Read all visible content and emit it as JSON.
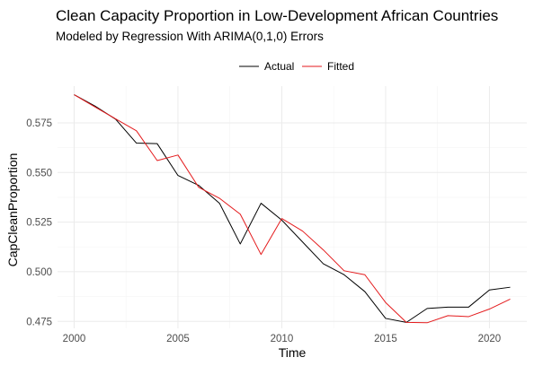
{
  "chart_data": {
    "type": "line",
    "title": "Clean Capacity Proportion in Low-Development African Countries",
    "subtitle": "Modeled by Regression With ARIMA(0,1,0) Errors",
    "xlabel": "Time",
    "ylabel": "CapCleanProportion",
    "x": [
      2000,
      2001,
      2002,
      2003,
      2004,
      2005,
      2006,
      2007,
      2008,
      2009,
      2010,
      2011,
      2012,
      2013,
      2014,
      2015,
      2016,
      2017,
      2018,
      2019,
      2020,
      2021
    ],
    "series": [
      {
        "name": "Actual",
        "color": "#000000",
        "values": [
          0.5892,
          0.5835,
          0.5768,
          0.5648,
          0.5645,
          0.5485,
          0.5435,
          0.5345,
          0.514,
          0.5345,
          0.526,
          0.515,
          0.504,
          0.4985,
          0.49,
          0.4765,
          0.4745,
          0.4815,
          0.4822,
          0.4822,
          0.4908,
          0.4922
        ]
      },
      {
        "name": "Fitted",
        "color": "#e41a1c",
        "values": [
          0.5892,
          0.583,
          0.577,
          0.571,
          0.556,
          0.5588,
          0.5425,
          0.537,
          0.529,
          0.5087,
          0.5268,
          0.5205,
          0.511,
          0.5005,
          0.4985,
          0.4845,
          0.4745,
          0.4743,
          0.4779,
          0.4774,
          0.4812,
          0.4862
        ]
      }
    ],
    "xticks": [
      2000,
      2005,
      2010,
      2015,
      2020
    ],
    "yticks": [
      0.475,
      0.5,
      0.525,
      0.55,
      0.575
    ],
    "ytick_labels": [
      "0.475",
      "0.500",
      "0.525",
      "0.550",
      "0.575"
    ],
    "xlim": [
      1999.2,
      2021.8
    ],
    "ylim": [
      0.4715,
      0.5935
    ],
    "legend_position": "top",
    "grid": true
  }
}
